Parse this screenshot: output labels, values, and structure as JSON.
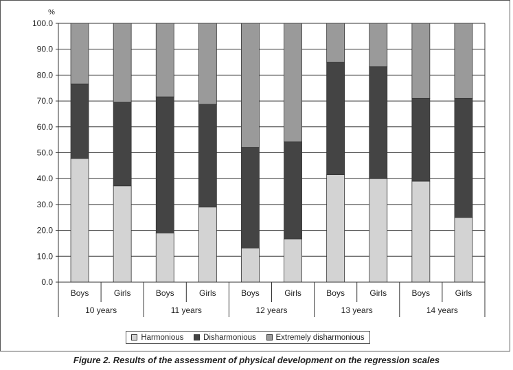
{
  "caption": "Figure 2. Results of the assessment of physical development on the regression scales",
  "chart_data": {
    "type": "bar",
    "stacked": true,
    "ylabel": "%",
    "ylim": [
      0,
      100
    ],
    "yticks": [
      "0.0",
      "10.0",
      "20.0",
      "30.0",
      "40.0",
      "50.0",
      "60.0",
      "70.0",
      "80.0",
      "90.0",
      "100.0"
    ],
    "grid": true,
    "legend_position": "bottom-center",
    "categories": [
      "Boys",
      "Girls",
      "Boys",
      "Girls",
      "Boys",
      "Girls",
      "Boys",
      "Girls",
      "Boys",
      "Girls"
    ],
    "groups": [
      "10 years",
      "11 years",
      "12 years",
      "13 years",
      "14 years"
    ],
    "series": [
      {
        "name": "Harmonious",
        "color": "#d3d3d3",
        "values": [
          47.8,
          37.2,
          19.0,
          29.0,
          13.2,
          16.7,
          41.5,
          40.0,
          39.0,
          25.0
        ]
      },
      {
        "name": "Disharmonious",
        "color": "#444444",
        "values": [
          28.8,
          32.3,
          52.6,
          39.7,
          38.9,
          37.5,
          43.5,
          43.3,
          32.0,
          46.0
        ]
      },
      {
        "name": "Extremely disharmonious",
        "color": "#9a9a9a",
        "values": [
          23.4,
          30.5,
          28.4,
          31.3,
          47.9,
          45.8,
          15.0,
          16.7,
          29.0,
          29.0
        ]
      }
    ]
  }
}
